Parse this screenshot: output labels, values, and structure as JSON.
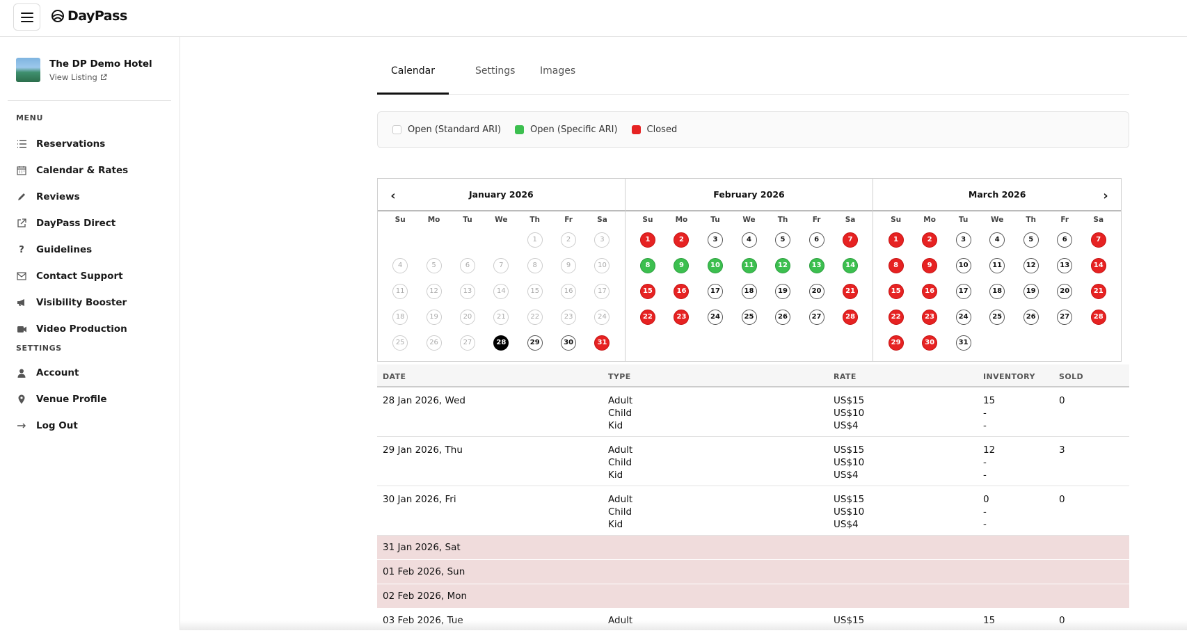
{
  "app": {
    "name": "DayPass"
  },
  "sidebar": {
    "hotel_name": "The DP Demo Hotel",
    "view_listing": "View Listing",
    "menu_heading": "MENU",
    "menu_items": [
      {
        "label": "Reservations",
        "icon": "list-icon"
      },
      {
        "label": "Calendar & Rates",
        "icon": "calendar-icon"
      },
      {
        "label": "Reviews",
        "icon": "pencil-icon"
      },
      {
        "label": "DayPass Direct",
        "icon": "external-link-icon"
      },
      {
        "label": "Guidelines",
        "icon": "question-icon"
      },
      {
        "label": "Contact Support",
        "icon": "envelope-icon"
      },
      {
        "label": "Visibility Booster",
        "icon": "megaphone-icon"
      },
      {
        "label": "Video Production",
        "icon": "video-icon"
      }
    ],
    "settings_heading": "SETTINGS",
    "settings_items": [
      {
        "label": "Account",
        "icon": "user-icon"
      },
      {
        "label": "Venue Profile",
        "icon": "map-pin-icon"
      },
      {
        "label": "Log Out",
        "icon": "logout-icon"
      }
    ]
  },
  "tabs": [
    {
      "label": "Calendar",
      "active": true
    },
    {
      "label": "Settings",
      "active": false
    },
    {
      "label": "Images",
      "active": false
    }
  ],
  "legend": [
    {
      "label": "Open (Standard ARI)",
      "color": "#ffffff"
    },
    {
      "label": "Open (Specific ARI)",
      "color": "#3cbf4f"
    },
    {
      "label": "Closed",
      "color": "#e62222"
    }
  ],
  "calendar": {
    "weekdays": [
      "Su",
      "Mo",
      "Tu",
      "We",
      "Th",
      "Fr",
      "Sa"
    ],
    "months": [
      {
        "title": "January 2026",
        "offset": 4,
        "days": 31,
        "past_until": 27,
        "selected": [
          28
        ],
        "closed": [
          31
        ],
        "green": []
      },
      {
        "title": "February 2026",
        "offset": 0,
        "days": 28,
        "past_until": 0,
        "selected": [],
        "closed": [
          1,
          2,
          7,
          15,
          16,
          21,
          22,
          23,
          28
        ],
        "green": [
          8,
          9,
          10,
          11,
          12,
          13,
          14
        ]
      },
      {
        "title": "March 2026",
        "offset": 0,
        "days": 31,
        "past_until": 0,
        "selected": [],
        "closed": [
          1,
          2,
          7,
          8,
          9,
          14,
          15,
          16,
          21,
          22,
          23,
          28,
          29,
          30
        ],
        "green": []
      }
    ]
  },
  "table": {
    "headers": {
      "date": "DATE",
      "type": "TYPE",
      "rate": "RATE",
      "inventory": "INVENTORY",
      "sold": "SOLD"
    },
    "rows": [
      {
        "date": "28 Jan 2026, Wed",
        "types": "Adult\nChild\nKid",
        "rates": "US$15\nUS$10\nUS$4",
        "inventory": "15\n-\n-",
        "sold": "0"
      },
      {
        "date": "29 Jan 2026, Thu",
        "types": "Adult\nChild\nKid",
        "rates": "US$15\nUS$10\nUS$4",
        "inventory": "12\n-\n-",
        "sold": "3"
      },
      {
        "date": "30 Jan 2026, Fri",
        "types": "Adult\nChild\nKid",
        "rates": "US$15\nUS$10\nUS$4",
        "inventory": "0\n-\n-",
        "sold": "0"
      }
    ],
    "closed_rows": [
      "31 Jan 2026, Sat",
      "01 Feb 2026, Sun",
      "02 Feb 2026, Mon"
    ],
    "last_row": {
      "date": "03 Feb 2026, Tue",
      "type": "Adult",
      "rate": "US$15",
      "inventory": "15",
      "sold": "0"
    }
  }
}
